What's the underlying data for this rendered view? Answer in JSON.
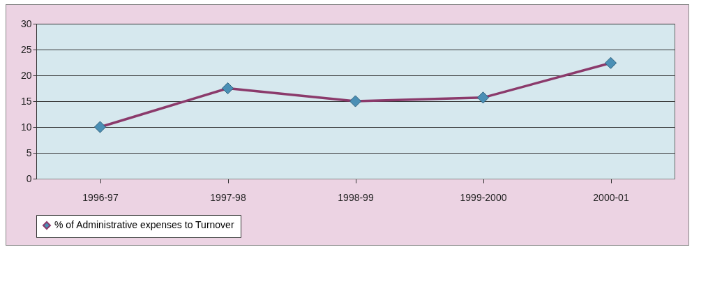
{
  "chart_data": {
    "type": "line",
    "categories": [
      "1996-97",
      "1997-98",
      "1998-99",
      "1999-2000",
      "2000-01"
    ],
    "series": [
      {
        "name": "% of Administrative expenses to Turnover",
        "color": "#8b3a6b",
        "values": [
          10,
          17.5,
          15,
          15.7,
          22.4
        ]
      }
    ],
    "ylim": [
      0,
      30
    ],
    "yticks": [
      0,
      5,
      10,
      15,
      20,
      25,
      30
    ],
    "grid": "y",
    "legend": "bottom",
    "marker": "diamond",
    "line_style": "solid"
  }
}
